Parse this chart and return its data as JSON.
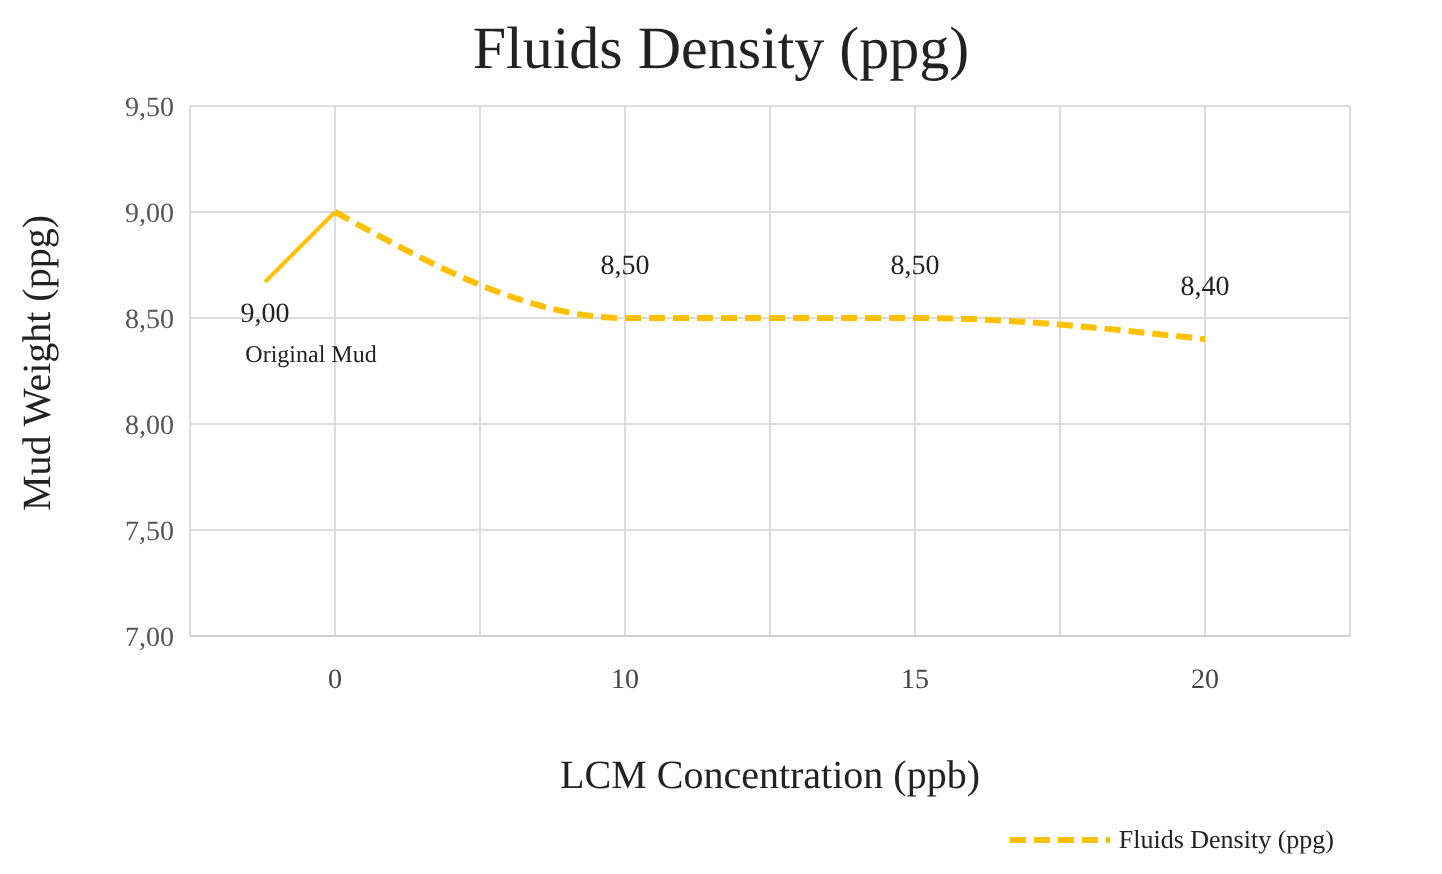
{
  "chart_data": {
    "type": "line",
    "title": "Fluids Density (ppg)",
    "xlabel": "LCM Concentration (ppb)",
    "ylabel": "Mud Weight (ppg)",
    "categories": [
      "0",
      "10",
      "15",
      "20"
    ],
    "series": [
      {
        "name": "Fluids Density (ppg)",
        "color": "#ffc000",
        "values": [
          9.0,
          8.5,
          8.5,
          8.4
        ],
        "value_labels": [
          "9,00",
          "8,50",
          "8,50",
          "8,40"
        ]
      }
    ],
    "ylim": [
      7,
      9.5
    ],
    "yticks": [
      {
        "value": 7,
        "label": "7,00"
      },
      {
        "value": 7.5,
        "label": "7,50"
      },
      {
        "value": 8,
        "label": "8,00"
      },
      {
        "value": 8.5,
        "label": "8,50"
      },
      {
        "value": 9,
        "label": "9,00"
      },
      {
        "value": 9.5,
        "label": "9,50"
      }
    ],
    "annotations": [
      "Original Mud"
    ],
    "grid": true,
    "legend": "bottom right",
    "line_style": "dashed",
    "marker": "none"
  }
}
